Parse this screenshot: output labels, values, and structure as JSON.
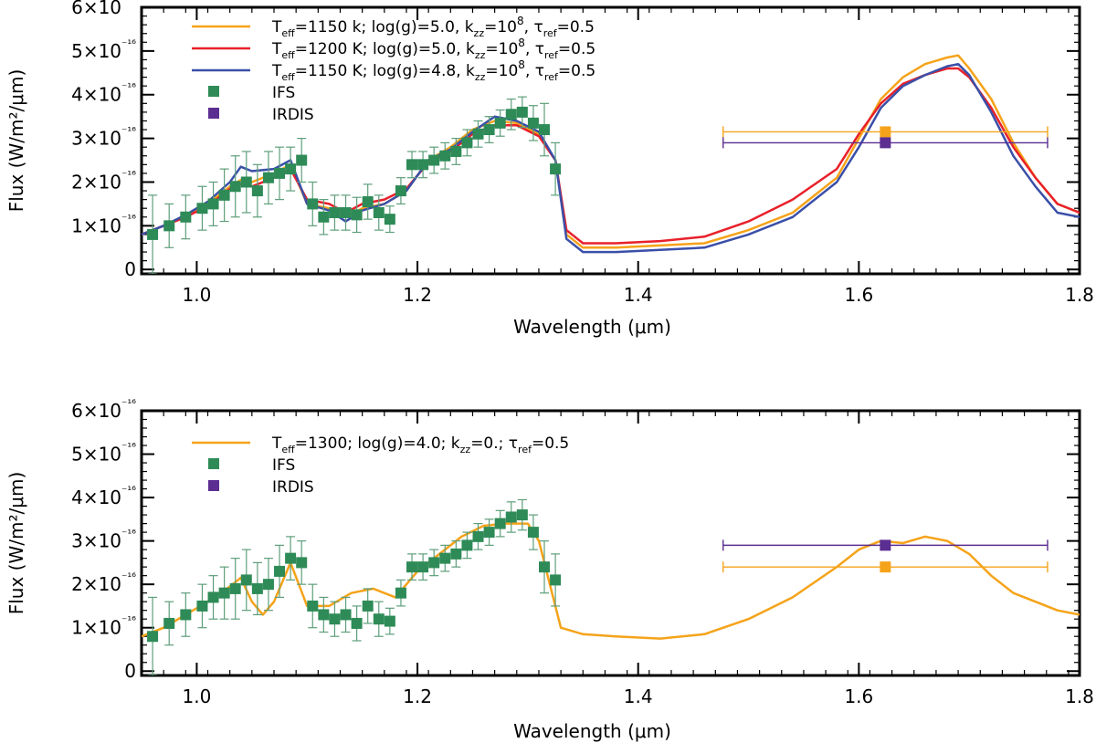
{
  "chart_data": [
    {
      "type": "line",
      "title": "",
      "xlabel": "Wavelength (μm)",
      "ylabel": "Flux (W/m²/μm)",
      "xlim": [
        0.95,
        1.8
      ],
      "ylim": [
        -0.1,
        6.0
      ],
      "y_unit": "1e-16",
      "xticks": [
        1.0,
        1.2,
        1.4,
        1.6,
        1.8
      ],
      "xtick_labels": [
        "1.0",
        "1.2",
        "1.4",
        "1.6",
        "1.8"
      ],
      "yticks": [
        0,
        1,
        2,
        3,
        4,
        5,
        6
      ],
      "ytick_labels": [
        "0",
        "1×10⁻¹⁶",
        "2×10⁻¹⁶",
        "3×10⁻¹⁶",
        "4×10⁻¹⁶",
        "5×10⁻¹⁶",
        "6×10⁻¹⁶"
      ],
      "legend_position": "top-left",
      "series": [
        {
          "name": "Teff=1150 k; log(g)=5.0, kzz=10^8, τref=0.5",
          "legend_parts": {
            "a": "T",
            "a_sub": "eff",
            "b": "=1150 k; log(g)=5.0, k",
            "b_sub": "zz",
            "c": "=10",
            "c_sup": "8",
            "d": ", ",
            "e": "τ",
            "e_sub": "ref",
            "f": "=0.5"
          },
          "color": "#F5A31A",
          "x": [
            0.95,
            0.97,
            0.99,
            1.01,
            1.03,
            1.04,
            1.05,
            1.07,
            1.085,
            1.1,
            1.12,
            1.135,
            1.15,
            1.17,
            1.19,
            1.21,
            1.23,
            1.25,
            1.27,
            1.29,
            1.31,
            1.325,
            1.335,
            1.35,
            1.38,
            1.42,
            1.46,
            1.5,
            1.54,
            1.58,
            1.6,
            1.62,
            1.64,
            1.66,
            1.68,
            1.69,
            1.7,
            1.72,
            1.74,
            1.76,
            1.78,
            1.8
          ],
          "y": [
            0.8,
            1.0,
            1.2,
            1.5,
            1.9,
            2.05,
            2.0,
            2.2,
            2.4,
            1.5,
            1.4,
            1.2,
            1.4,
            1.5,
            1.8,
            2.5,
            2.8,
            3.2,
            3.4,
            3.35,
            3.1,
            2.5,
            0.8,
            0.5,
            0.5,
            0.55,
            0.6,
            0.9,
            1.3,
            2.1,
            3.0,
            3.9,
            4.4,
            4.7,
            4.85,
            4.9,
            4.6,
            3.9,
            2.9,
            2.1,
            1.5,
            1.3
          ]
        },
        {
          "name": "Teff=1200 K; log(g)=5.0, kzz=10^8, τref=0.5",
          "legend_parts": {
            "a": "T",
            "a_sub": "eff",
            "b": "=1200 K; log(g)=5.0, k",
            "b_sub": "zz",
            "c": "=10",
            "c_sup": "8",
            "d": ", ",
            "e": "τ",
            "e_sub": "ref",
            "f": "=0.5"
          },
          "color": "#E8202A",
          "x": [
            0.95,
            0.97,
            0.99,
            1.01,
            1.03,
            1.04,
            1.05,
            1.07,
            1.085,
            1.1,
            1.12,
            1.135,
            1.15,
            1.17,
            1.19,
            1.21,
            1.23,
            1.25,
            1.27,
            1.29,
            1.31,
            1.325,
            1.335,
            1.35,
            1.38,
            1.42,
            1.46,
            1.5,
            1.54,
            1.58,
            1.6,
            1.62,
            1.64,
            1.66,
            1.68,
            1.69,
            1.7,
            1.72,
            1.74,
            1.76,
            1.78,
            1.8
          ],
          "y": [
            0.8,
            1.0,
            1.2,
            1.45,
            1.85,
            1.95,
            1.9,
            2.1,
            2.3,
            1.6,
            1.5,
            1.3,
            1.5,
            1.6,
            1.85,
            2.45,
            2.7,
            3.1,
            3.3,
            3.3,
            3.05,
            2.5,
            0.9,
            0.6,
            0.6,
            0.65,
            0.75,
            1.1,
            1.6,
            2.3,
            3.1,
            3.8,
            4.25,
            4.45,
            4.6,
            4.6,
            4.4,
            3.7,
            2.8,
            2.1,
            1.5,
            1.3
          ]
        },
        {
          "name": "Teff=1150 K; log(g)=4.8, kzz=10^8, τref=0.5",
          "legend_parts": {
            "a": "T",
            "a_sub": "eff",
            "b": "=1150 K; log(g)=4.8, k",
            "b_sub": "zz",
            "c": "=10",
            "c_sup": "8",
            "d": ", ",
            "e": "τ",
            "e_sub": "ref",
            "f": "=0.5"
          },
          "color": "#3A4FA8",
          "x": [
            0.95,
            0.97,
            0.99,
            1.01,
            1.03,
            1.04,
            1.05,
            1.07,
            1.085,
            1.1,
            1.12,
            1.135,
            1.15,
            1.17,
            1.19,
            1.21,
            1.23,
            1.25,
            1.27,
            1.29,
            1.31,
            1.325,
            1.335,
            1.35,
            1.38,
            1.42,
            1.46,
            1.5,
            1.54,
            1.58,
            1.6,
            1.62,
            1.64,
            1.66,
            1.68,
            1.69,
            1.7,
            1.72,
            1.74,
            1.76,
            1.78,
            1.8
          ],
          "y": [
            0.8,
            1.0,
            1.25,
            1.55,
            2.0,
            2.35,
            2.25,
            2.3,
            2.5,
            1.5,
            1.35,
            1.1,
            1.35,
            1.5,
            1.8,
            2.5,
            2.75,
            3.15,
            3.5,
            3.4,
            3.15,
            2.5,
            0.7,
            0.4,
            0.4,
            0.45,
            0.5,
            0.8,
            1.2,
            2.0,
            2.8,
            3.7,
            4.2,
            4.45,
            4.65,
            4.7,
            4.45,
            3.6,
            2.6,
            1.9,
            1.3,
            1.2
          ]
        }
      ],
      "points": [
        {
          "name": "IFS",
          "color": "#2E8B57",
          "x": [
            0.96,
            0.975,
            0.99,
            1.005,
            1.015,
            1.025,
            1.035,
            1.045,
            1.055,
            1.065,
            1.075,
            1.085,
            1.095,
            1.105,
            1.115,
            1.125,
            1.135,
            1.145,
            1.155,
            1.165,
            1.175,
            1.185,
            1.195,
            1.205,
            1.215,
            1.225,
            1.235,
            1.245,
            1.255,
            1.265,
            1.275,
            1.285,
            1.295,
            1.305,
            1.315,
            1.325
          ],
          "y": [
            0.8,
            1.0,
            1.2,
            1.4,
            1.5,
            1.7,
            1.9,
            2.0,
            1.8,
            2.1,
            2.2,
            2.3,
            2.5,
            1.5,
            1.2,
            1.3,
            1.3,
            1.25,
            1.55,
            1.3,
            1.15,
            1.8,
            2.4,
            2.4,
            2.5,
            2.6,
            2.7,
            2.9,
            3.1,
            3.2,
            3.35,
            3.55,
            3.6,
            3.35,
            3.2,
            2.3
          ],
          "err": [
            0.9,
            0.5,
            0.5,
            0.5,
            0.5,
            0.6,
            0.7,
            0.7,
            0.6,
            0.6,
            0.6,
            0.5,
            0.5,
            0.5,
            0.4,
            0.4,
            0.4,
            0.4,
            0.4,
            0.4,
            0.3,
            0.3,
            0.3,
            0.3,
            0.3,
            0.3,
            0.3,
            0.3,
            0.3,
            0.3,
            0.3,
            0.35,
            0.35,
            0.4,
            0.6,
            0.6
          ]
        },
        {
          "name": "IRDIS",
          "color": "#5B2E91",
          "x": [
            1.624
          ],
          "y": [
            2.9
          ],
          "xerr": [
            0.147
          ],
          "err": [
            0
          ]
        }
      ],
      "irdis_model_points": [
        {
          "color": "#F5A31A",
          "x": 1.624,
          "y": 3.15,
          "xerr": 0.147
        }
      ]
    },
    {
      "type": "line",
      "title": "",
      "xlabel": "Wavelength (μm)",
      "ylabel": "Flux (W/m²/μm)",
      "xlim": [
        0.95,
        1.8
      ],
      "ylim": [
        -0.1,
        6.0
      ],
      "y_unit": "1e-16",
      "xticks": [
        1.0,
        1.2,
        1.4,
        1.6,
        1.8
      ],
      "xtick_labels": [
        "1.0",
        "1.2",
        "1.4",
        "1.6",
        "1.8"
      ],
      "yticks": [
        0,
        1,
        2,
        3,
        4,
        5,
        6
      ],
      "ytick_labels": [
        "0",
        "1×10⁻¹⁶",
        "2×10⁻¹⁶",
        "3×10⁻¹⁶",
        "4×10⁻¹⁶",
        "5×10⁻¹⁶",
        "6×10⁻¹⁶"
      ],
      "legend_position": "top-left",
      "series": [
        {
          "name": "Teff=1300; log(g)=4.0; kzz=0.; τref=0.5",
          "legend_parts": {
            "a": "T",
            "a_sub": "eff",
            "b": "=1300; log(g)=4.0; k",
            "b_sub": "zz",
            "c": "=0.",
            "c_sup": "",
            "d": "; ",
            "e": "τ",
            "e_sub": "ref",
            "f": "=0.5"
          },
          "color": "#F5A31A",
          "x": [
            0.95,
            0.97,
            0.99,
            1.01,
            1.03,
            1.04,
            1.05,
            1.06,
            1.07,
            1.085,
            1.1,
            1.12,
            1.14,
            1.16,
            1.18,
            1.2,
            1.22,
            1.24,
            1.26,
            1.28,
            1.3,
            1.31,
            1.32,
            1.33,
            1.35,
            1.38,
            1.42,
            1.46,
            1.5,
            1.54,
            1.58,
            1.6,
            1.62,
            1.64,
            1.66,
            1.68,
            1.7,
            1.72,
            1.74,
            1.76,
            1.78,
            1.8
          ],
          "y": [
            0.8,
            1.0,
            1.3,
            1.6,
            1.95,
            2.15,
            1.6,
            1.3,
            1.6,
            2.5,
            1.5,
            1.5,
            1.8,
            1.9,
            1.7,
            2.3,
            2.7,
            3.1,
            3.35,
            3.4,
            3.4,
            3.0,
            2.0,
            1.0,
            0.85,
            0.8,
            0.75,
            0.85,
            1.2,
            1.7,
            2.4,
            2.8,
            3.0,
            2.95,
            3.1,
            3.0,
            2.7,
            2.2,
            1.8,
            1.6,
            1.4,
            1.3
          ]
        }
      ],
      "points": [
        {
          "name": "IFS",
          "color": "#2E8B57",
          "x": [
            0.96,
            0.975,
            0.99,
            1.005,
            1.015,
            1.025,
            1.035,
            1.045,
            1.055,
            1.065,
            1.075,
            1.085,
            1.095,
            1.105,
            1.115,
            1.125,
            1.135,
            1.145,
            1.155,
            1.165,
            1.175,
            1.185,
            1.195,
            1.205,
            1.215,
            1.225,
            1.235,
            1.245,
            1.255,
            1.265,
            1.275,
            1.285,
            1.295,
            1.305,
            1.315,
            1.325
          ],
          "y": [
            0.8,
            1.1,
            1.3,
            1.5,
            1.7,
            1.8,
            1.9,
            2.1,
            1.9,
            2.0,
            2.3,
            2.6,
            2.5,
            1.5,
            1.3,
            1.2,
            1.3,
            1.1,
            1.5,
            1.2,
            1.15,
            1.8,
            2.4,
            2.4,
            2.5,
            2.6,
            2.7,
            2.9,
            3.1,
            3.2,
            3.4,
            3.55,
            3.6,
            3.2,
            2.4,
            2.1
          ],
          "err": [
            0.9,
            0.5,
            0.5,
            0.5,
            0.5,
            0.6,
            0.7,
            0.7,
            0.6,
            0.6,
            0.6,
            0.5,
            0.5,
            0.5,
            0.4,
            0.4,
            0.4,
            0.4,
            0.4,
            0.4,
            0.3,
            0.3,
            0.3,
            0.3,
            0.3,
            0.3,
            0.3,
            0.3,
            0.3,
            0.3,
            0.3,
            0.35,
            0.35,
            0.4,
            0.6,
            0.6
          ]
        },
        {
          "name": "IRDIS",
          "color": "#5B2E91",
          "x": [
            1.624
          ],
          "y": [
            2.9
          ],
          "xerr": [
            0.147
          ],
          "err": [
            0
          ]
        }
      ],
      "irdis_model_points": [
        {
          "color": "#F5A31A",
          "x": 1.624,
          "y": 2.4,
          "xerr": 0.147
        }
      ]
    }
  ]
}
